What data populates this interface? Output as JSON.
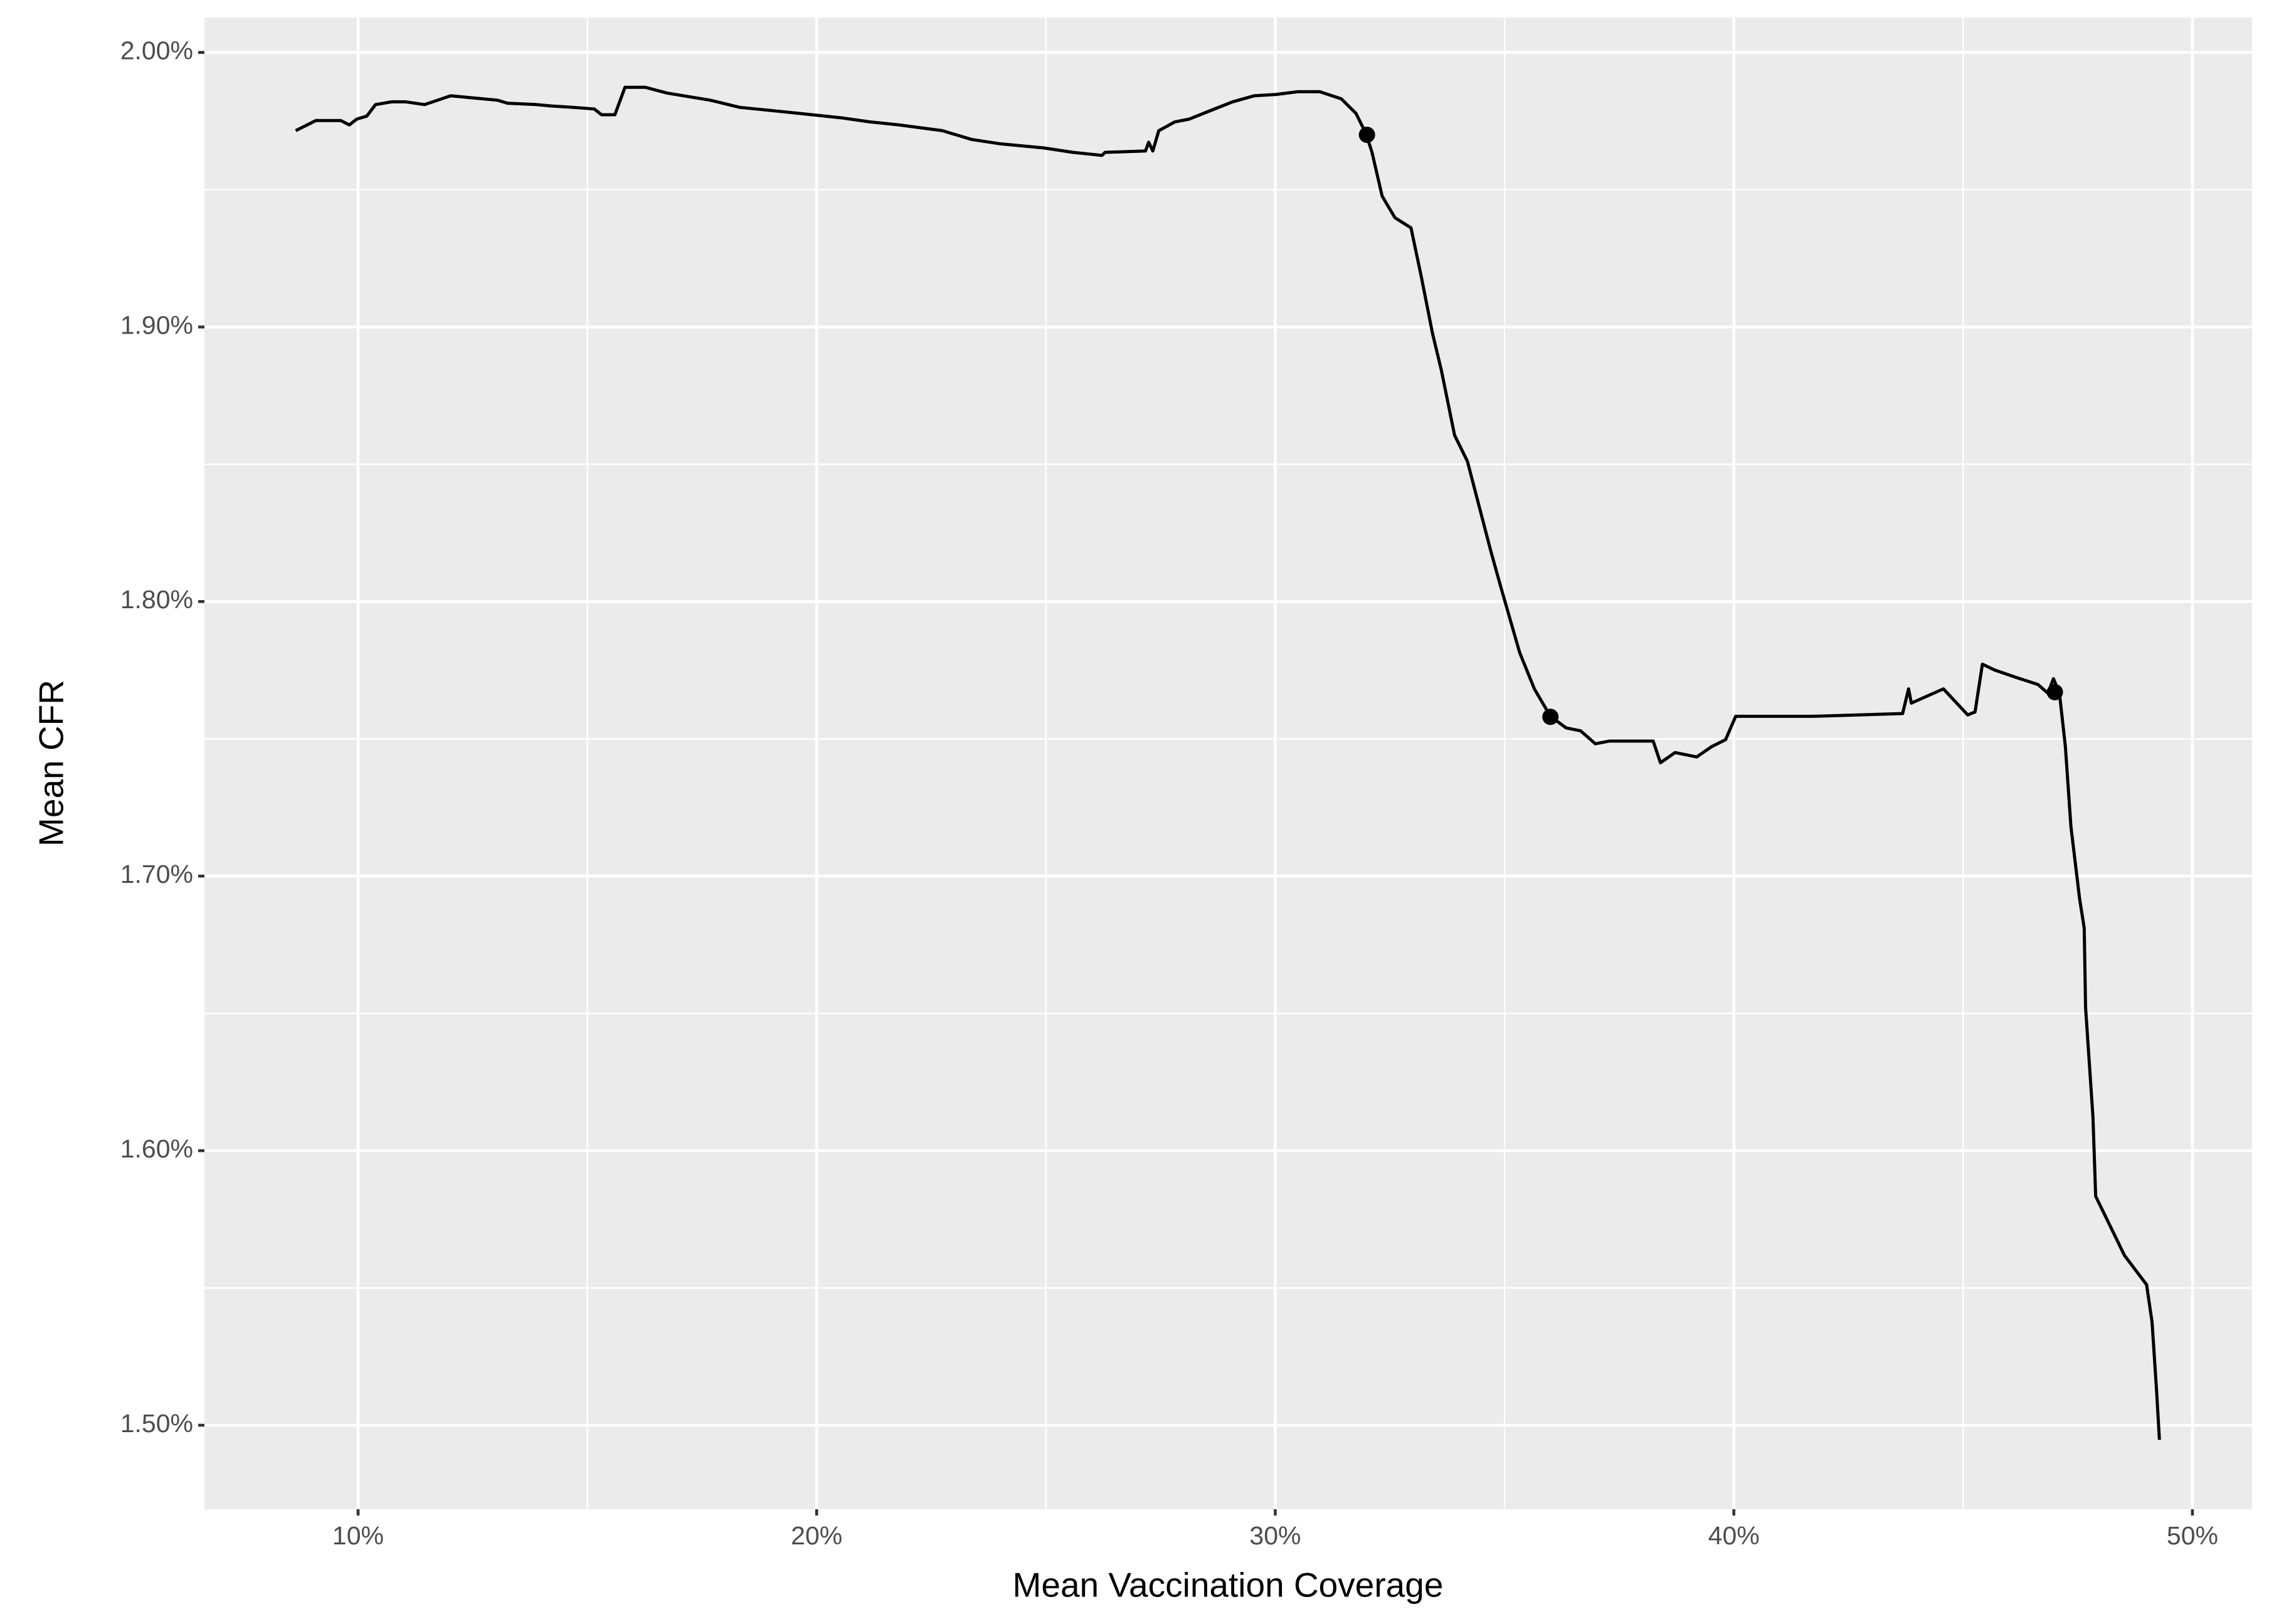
{
  "chart_data": {
    "type": "line",
    "xlabel": "Mean Vaccination Coverage",
    "ylabel": "Mean CFR",
    "x": [
      8.64,
      9.08,
      9.62,
      9.81,
      9.97,
      10.19,
      10.38,
      10.73,
      11.04,
      11.45,
      12.02,
      13.04,
      13.26,
      13.89,
      14.21,
      14.68,
      15.15,
      15.31,
      15.6,
      15.82,
      16.26,
      16.74,
      17.68,
      18.32,
      19.27,
      19.9,
      20.53,
      21.16,
      21.8,
      22.74,
      23.38,
      24.01,
      24.96,
      25.59,
      26.22,
      26.29,
      27.17,
      27.24,
      27.33,
      27.46,
      27.81,
      28.12,
      28.6,
      29.07,
      29.54,
      30.02,
      30.49,
      30.97,
      31.44,
      31.76,
      31.98,
      32.11,
      32.33,
      32.61,
      32.96,
      33.18,
      33.43,
      33.62,
      33.91,
      34.19,
      34.7,
      34.92,
      35.33,
      35.65,
      36.0,
      36.34,
      36.66,
      36.98,
      37.29,
      38.24,
      38.4,
      38.72,
      39.19,
      39.51,
      39.82,
      40.04,
      41.72,
      43.68,
      43.81,
      43.87,
      44.57,
      45.1,
      45.26,
      45.42,
      45.68,
      46.15,
      46.63,
      46.85,
      46.97,
      47.1,
      47.23,
      47.35,
      47.54,
      47.64,
      47.67,
      47.83,
      47.89,
      48.52,
      49.0,
      49.12,
      49.22,
      49.28
    ],
    "values": [
      1.9715,
      1.9752,
      1.9752,
      1.9736,
      1.9757,
      1.9768,
      1.981,
      1.982,
      1.982,
      1.981,
      1.9842,
      1.9826,
      1.9815,
      1.981,
      1.9805,
      1.98,
      1.9794,
      1.9773,
      1.9773,
      1.9873,
      1.9873,
      1.9852,
      1.9826,
      1.98,
      1.9784,
      1.9773,
      1.9762,
      1.9747,
      1.9736,
      1.9715,
      1.9683,
      1.9667,
      1.9652,
      1.9636,
      1.9625,
      1.9636,
      1.9641,
      1.9673,
      1.9641,
      1.9715,
      1.9747,
      1.9757,
      1.9789,
      1.982,
      1.9842,
      1.9847,
      1.9857,
      1.9857,
      1.9831,
      1.9778,
      1.9704,
      1.9636,
      1.9477,
      1.9398,
      1.9361,
      1.9187,
      1.8976,
      1.8844,
      1.8606,
      1.8511,
      1.8184,
      1.8052,
      1.7814,
      1.7682,
      1.7582,
      1.754,
      1.7529,
      1.7482,
      1.7492,
      1.7492,
      1.7413,
      1.745,
      1.7434,
      1.7471,
      1.7497,
      1.7582,
      1.7582,
      1.7592,
      1.7682,
      1.763,
      1.7682,
      1.7587,
      1.7598,
      1.7772,
      1.7751,
      1.7724,
      1.7698,
      1.7666,
      1.7719,
      1.7666,
      1.7471,
      1.7181,
      1.6917,
      1.6811,
      1.6521,
      1.6125,
      1.5834,
      1.5618,
      1.5512,
      1.5375,
      1.5121,
      1.4947
    ],
    "color": "#000000",
    "points": {
      "x": [
        32.0,
        36.0,
        47.0
      ],
      "values": [
        1.97,
        1.758,
        1.767
      ]
    },
    "xlim": [
      6.65,
      51.3
    ],
    "ylim": [
      1.4694,
      2.0127
    ],
    "xticks": [
      {
        "value": 10,
        "label": "10%"
      },
      {
        "value": 20,
        "label": "20%"
      },
      {
        "value": 30,
        "label": "30%"
      },
      {
        "value": 40,
        "label": "40%"
      },
      {
        "value": 50,
        "label": "50%"
      }
    ],
    "yticks": [
      {
        "value": 1.5,
        "label": "1.50%"
      },
      {
        "value": 1.6,
        "label": "1.60%"
      },
      {
        "value": 1.7,
        "label": "1.70%"
      },
      {
        "value": 1.8,
        "label": "1.80%"
      },
      {
        "value": 1.9,
        "label": "1.90%"
      },
      {
        "value": 2.0,
        "label": "2.00%"
      }
    ],
    "xminor": [
      15,
      25,
      35,
      45
    ],
    "yminor": [
      1.55,
      1.65,
      1.75,
      1.85,
      1.95
    ],
    "grid": true
  }
}
